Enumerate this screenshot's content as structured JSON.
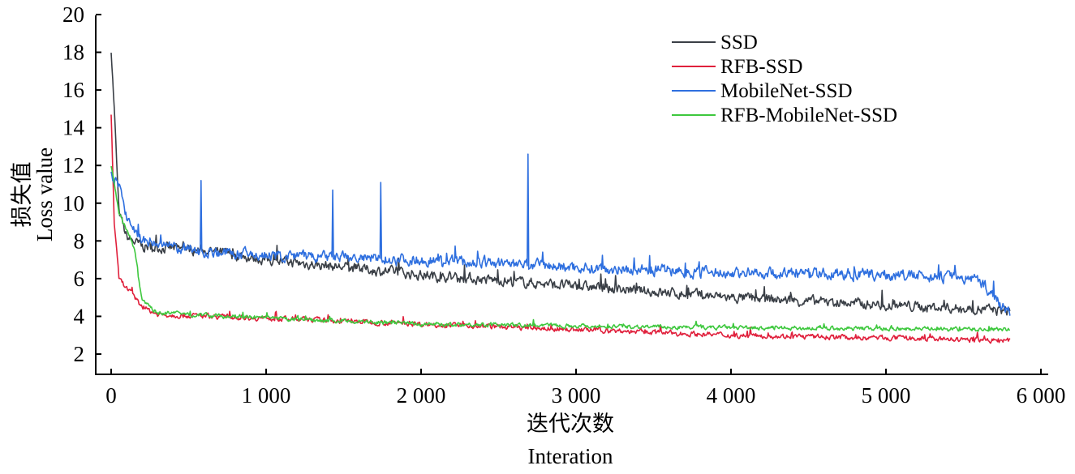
{
  "chart_data": {
    "type": "line",
    "xlabel_zh": "迭代次数",
    "xlabel": "Interation",
    "ylabel_zh": "损失值",
    "ylabel": "Loss value",
    "xlim": [
      -100,
      6000
    ],
    "ylim": [
      0.9,
      20
    ],
    "xticks": [
      0,
      1000,
      2000,
      3000,
      4000,
      5000,
      6000
    ],
    "xtick_labels": [
      "0",
      "1 000",
      "2 000",
      "3 000",
      "4 000",
      "5 000",
      "6 000"
    ],
    "yticks": [
      2,
      4,
      6,
      8,
      10,
      12,
      14,
      16,
      18,
      20
    ],
    "ytick_labels": [
      "2",
      "4",
      "6",
      "8",
      "10",
      "12",
      "14",
      "16",
      "18",
      "20"
    ],
    "legend_position": "top-right",
    "series": [
      {
        "name": "SSD",
        "color": "#3a3f46",
        "noise": 0.45,
        "points": [
          [
            0,
            18.2
          ],
          [
            20,
            15
          ],
          [
            50,
            9.5
          ],
          [
            100,
            8.2
          ],
          [
            200,
            7.7
          ],
          [
            600,
            7.5
          ],
          [
            1000,
            7.0
          ],
          [
            1500,
            6.6
          ],
          [
            2000,
            6.2
          ],
          [
            2500,
            5.9
          ],
          [
            3000,
            5.6
          ],
          [
            3500,
            5.3
          ],
          [
            4000,
            5.0
          ],
          [
            4500,
            4.8
          ],
          [
            5000,
            4.6
          ],
          [
            5500,
            4.4
          ],
          [
            5800,
            4.3
          ]
        ],
        "spikes": []
      },
      {
        "name": "RFB-SSD",
        "color": "#e0203c",
        "noise": 0.22,
        "points": [
          [
            0,
            14.7
          ],
          [
            20,
            9
          ],
          [
            50,
            6
          ],
          [
            100,
            5.5
          ],
          [
            200,
            4.5
          ],
          [
            300,
            4.1
          ],
          [
            1000,
            3.9
          ],
          [
            2000,
            3.6
          ],
          [
            3000,
            3.3
          ],
          [
            4000,
            3.0
          ],
          [
            5000,
            2.85
          ],
          [
            5800,
            2.7
          ]
        ],
        "spikes": []
      },
      {
        "name": "MobileNet-SSD",
        "color": "#2e6fdf",
        "noise": 0.5,
        "points": [
          [
            0,
            11.5
          ],
          [
            50,
            11
          ],
          [
            100,
            9.2
          ],
          [
            200,
            8
          ],
          [
            500,
            7.5
          ],
          [
            1000,
            7.2
          ],
          [
            2000,
            7.0
          ],
          [
            3000,
            6.6
          ],
          [
            4000,
            6.3
          ],
          [
            5000,
            6.2
          ],
          [
            5600,
            6.0
          ],
          [
            5700,
            5.0
          ],
          [
            5800,
            4.2
          ]
        ],
        "spikes": [
          [
            580,
            11.2
          ],
          [
            1430,
            10.7
          ],
          [
            1740,
            11.1
          ],
          [
            2690,
            12.6
          ]
        ]
      },
      {
        "name": "RFB-MobileNet-SSD",
        "color": "#3ec83e",
        "noise": 0.18,
        "points": [
          [
            0,
            12
          ],
          [
            50,
            9.5
          ],
          [
            100,
            8.6
          ],
          [
            150,
            7.6
          ],
          [
            200,
            4.8
          ],
          [
            300,
            4.2
          ],
          [
            1000,
            3.9
          ],
          [
            2000,
            3.6
          ],
          [
            3000,
            3.5
          ],
          [
            4000,
            3.4
          ],
          [
            5000,
            3.35
          ],
          [
            5800,
            3.3
          ]
        ],
        "spikes": []
      }
    ]
  }
}
